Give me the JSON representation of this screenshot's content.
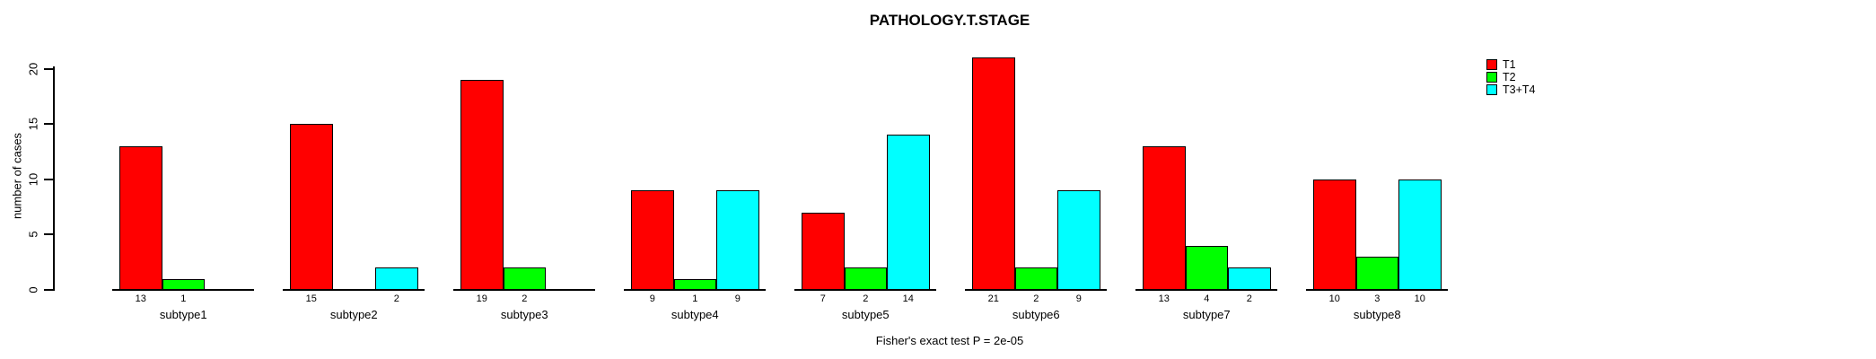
{
  "chart_data": {
    "type": "bar",
    "title": "PATHOLOGY.T.STAGE",
    "xlabel": "",
    "ylabel": "number of cases",
    "ylim": [
      0,
      20
    ],
    "y_ticks": [
      0,
      5,
      10,
      15,
      20
    ],
    "grid": false,
    "legend_position": "right",
    "categories": [
      "subtype1",
      "subtype2",
      "subtype3",
      "subtype4",
      "subtype5",
      "subtype6",
      "subtype7",
      "subtype8"
    ],
    "series": [
      {
        "name": "T1",
        "color": "#ff0000",
        "values": [
          13,
          15,
          19,
          9,
          7,
          21,
          13,
          10
        ]
      },
      {
        "name": "T2",
        "color": "#00ff00",
        "values": [
          1,
          0,
          2,
          1,
          2,
          2,
          4,
          3
        ]
      },
      {
        "name": "T3+T4",
        "color": "#00ffff",
        "values": [
          0,
          2,
          0,
          9,
          14,
          9,
          2,
          10
        ]
      }
    ],
    "bar_value_labels": "shown under each bar when value > 0",
    "annotation": "Fisher's exact test P = 2e-05"
  }
}
